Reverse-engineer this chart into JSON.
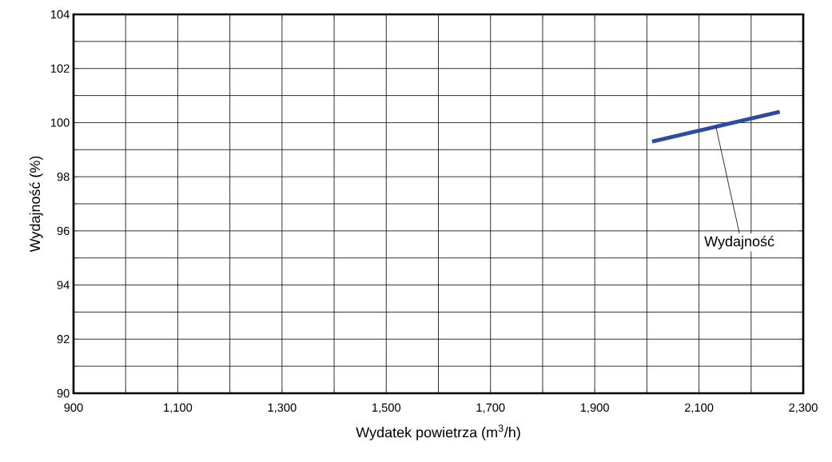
{
  "chart_data": {
    "type": "line",
    "xlabel": "Wydatek powietrza (m$^{3}$/h)",
    "ylabel": "Wydajność (%)",
    "x": [
      2010,
      2255
    ],
    "series": [
      {
        "name": "Wydajność",
        "color": "#2e4ba3",
        "values": [
          99.3,
          100.4
        ]
      }
    ],
    "xlim": [
      900,
      2300
    ],
    "ylim": [
      90,
      104
    ],
    "xticks": [
      900,
      {
        "value": 1000,
        "label": null
      },
      {
        "value": 1100,
        "label": "1,100"
      },
      {
        "value": 1200,
        "label": null
      },
      {
        "value": 1300,
        "label": "1,300"
      },
      {
        "value": 1400,
        "label": null
      },
      {
        "value": 1500,
        "label": "1,500"
      },
      {
        "value": 1600,
        "label": null
      },
      {
        "value": 1700,
        "label": "1,700"
      },
      {
        "value": 1800,
        "label": null
      },
      {
        "value": 1900,
        "label": "1,900"
      },
      {
        "value": 2000,
        "label": null
      },
      {
        "value": 2100,
        "label": "2,100"
      },
      {
        "value": 2200,
        "label": null
      },
      {
        "value": 2300,
        "label": "2,300"
      }
    ],
    "yticks": [
      90,
      {
        "value": 91,
        "label": null
      },
      92,
      {
        "value": 93,
        "label": null
      },
      94,
      {
        "value": 95,
        "label": null
      },
      96,
      {
        "value": 97,
        "label": null
      },
      98,
      {
        "value": 99,
        "label": null
      },
      100,
      {
        "value": 101,
        "label": null
      },
      102,
      {
        "value": 103,
        "label": null
      },
      104
    ],
    "grid": true,
    "marker": "none",
    "line_style": "solid"
  }
}
